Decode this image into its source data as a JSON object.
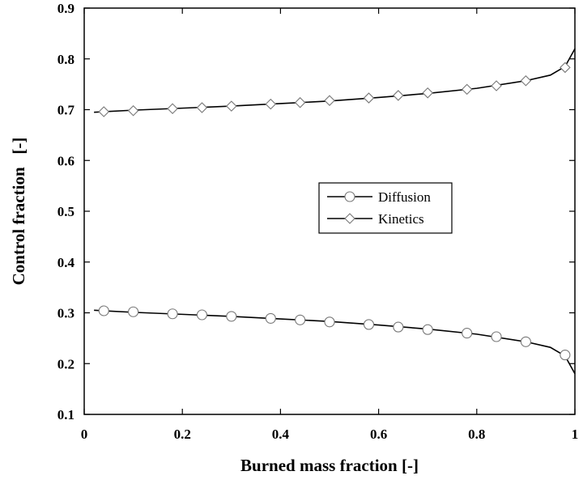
{
  "chart_data": {
    "type": "line",
    "xlabel": "Burned mass fraction [-]",
    "ylabel": "Control fraction   [-]",
    "xlim": [
      0,
      1
    ],
    "ylim": [
      0.1,
      0.9
    ],
    "xticks": [
      0,
      0.2,
      0.4,
      0.6,
      0.8,
      1
    ],
    "xtick_labels": [
      "0",
      "0.2",
      "0.4",
      "0.6",
      "0.8",
      "1"
    ],
    "yticks": [
      0.1,
      0.2,
      0.3,
      0.4,
      0.5,
      0.6,
      0.7,
      0.8,
      0.9
    ],
    "ytick_labels": [
      "0.1",
      "0.2",
      "0.3",
      "0.4",
      "0.5",
      "0.6",
      "0.7",
      "0.8",
      "0.9"
    ],
    "grid": false,
    "legend_position": "center-right",
    "series": [
      {
        "name": "Diffusion",
        "marker": "circle",
        "line": {
          "x": [
            0.02,
            0.1,
            0.2,
            0.3,
            0.4,
            0.5,
            0.6,
            0.7,
            0.8,
            0.9,
            0.95,
            0.98,
            1.0
          ],
          "y": [
            0.305,
            0.301,
            0.297,
            0.293,
            0.288,
            0.283,
            0.276,
            0.268,
            0.258,
            0.243,
            0.232,
            0.215,
            0.18
          ]
        },
        "markers": {
          "x": [
            0.04,
            0.1,
            0.18,
            0.24,
            0.3,
            0.38,
            0.44,
            0.5,
            0.58,
            0.64,
            0.7,
            0.78,
            0.84,
            0.9,
            0.98
          ],
          "y": [
            0.304,
            0.302,
            0.298,
            0.296,
            0.293,
            0.289,
            0.286,
            0.282,
            0.277,
            0.272,
            0.267,
            0.26,
            0.253,
            0.243,
            0.217
          ]
        }
      },
      {
        "name": "Kinetics",
        "marker": "diamond",
        "line": {
          "x": [
            0.02,
            0.1,
            0.2,
            0.3,
            0.4,
            0.5,
            0.6,
            0.7,
            0.8,
            0.9,
            0.95,
            0.98,
            1.0
          ],
          "y": [
            0.695,
            0.699,
            0.703,
            0.707,
            0.712,
            0.717,
            0.724,
            0.732,
            0.742,
            0.757,
            0.768,
            0.785,
            0.82
          ]
        },
        "markers": {
          "x": [
            0.04,
            0.1,
            0.18,
            0.24,
            0.3,
            0.38,
            0.44,
            0.5,
            0.58,
            0.64,
            0.7,
            0.78,
            0.84,
            0.9,
            0.98
          ],
          "y": [
            0.696,
            0.698,
            0.702,
            0.704,
            0.707,
            0.711,
            0.714,
            0.718,
            0.723,
            0.728,
            0.733,
            0.74,
            0.747,
            0.757,
            0.783
          ]
        }
      }
    ]
  }
}
